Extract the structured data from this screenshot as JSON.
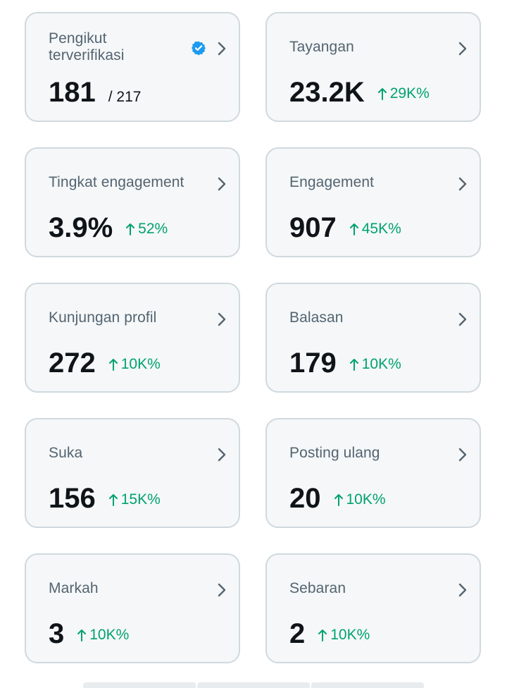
{
  "cards": [
    {
      "label": "Pengikut terverifikasi",
      "value": "181",
      "sub": "/ 217",
      "delta": "",
      "verified": true
    },
    {
      "label": "Tayangan",
      "value": "23.2K",
      "sub": "",
      "delta": "29K%"
    },
    {
      "label": "Tingkat engagement",
      "value": "3.9%",
      "sub": "",
      "delta": "52%"
    },
    {
      "label": "Engagement",
      "value": "907",
      "sub": "",
      "delta": "45K%"
    },
    {
      "label": "Kunjungan profil",
      "value": "272",
      "sub": "",
      "delta": "10K%"
    },
    {
      "label": "Balasan",
      "value": "179",
      "sub": "",
      "delta": "10K%"
    },
    {
      "label": "Suka",
      "value": "156",
      "sub": "",
      "delta": "15K%"
    },
    {
      "label": "Posting ulang",
      "value": "20",
      "sub": "",
      "delta": "10K%"
    },
    {
      "label": "Markah",
      "value": "3",
      "sub": "",
      "delta": "10K%"
    },
    {
      "label": "Sebaran",
      "value": "2",
      "sub": "",
      "delta": "10K%"
    }
  ],
  "colors": {
    "card_bg": "#f5f7f8",
    "card_border": "#cfd9de",
    "label": "#536471",
    "value": "#0f1419",
    "positive": "#00a36c",
    "verified": "#1d9bf0"
  },
  "icons": {
    "chevron": "chevron-right-icon",
    "arrow": "arrow-up-icon",
    "verified": "verified-badge-icon"
  }
}
